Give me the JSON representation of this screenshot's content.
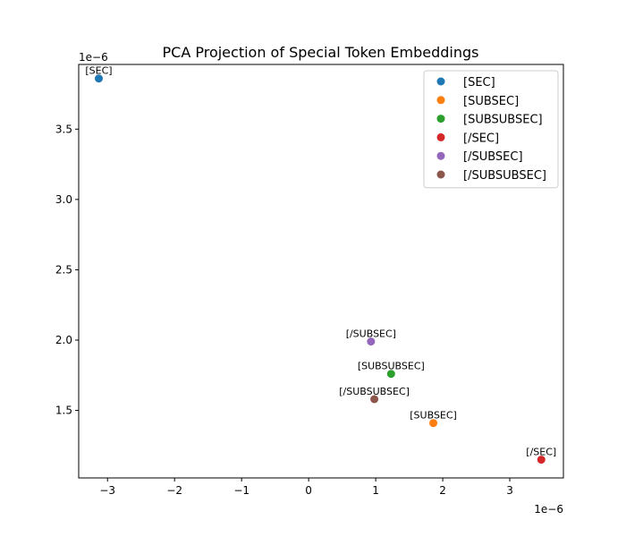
{
  "chart_data": {
    "type": "scatter",
    "title": "PCA Projection of Special Token Embeddings",
    "xlabel": "",
    "ylabel": "",
    "x_offset_label": "1e−6",
    "y_offset_label": "1e−6",
    "xlim": [
      -3.43,
      3.8
    ],
    "ylim": [
      1.02,
      3.96
    ],
    "x_ticks": [
      {
        "value": -3,
        "label": "−3"
      },
      {
        "value": -2,
        "label": "−2"
      },
      {
        "value": -1,
        "label": "−1"
      },
      {
        "value": 0,
        "label": "0"
      },
      {
        "value": 1,
        "label": "1"
      },
      {
        "value": 2,
        "label": "2"
      },
      {
        "value": 3,
        "label": "3"
      }
    ],
    "y_ticks": [
      {
        "value": 1.5,
        "label": "1.5"
      },
      {
        "value": 2.0,
        "label": "2.0"
      },
      {
        "value": 2.5,
        "label": "2.5"
      },
      {
        "value": 3.0,
        "label": "3.0"
      },
      {
        "value": 3.5,
        "label": "3.5"
      }
    ],
    "grid": false,
    "legend_position": "top-right",
    "series": [
      {
        "name": "[SEC]",
        "label": "[SEC]",
        "color": "#1f77b4",
        "x": -3.13,
        "y": 3.86
      },
      {
        "name": "[SUBSEC]",
        "label": "[SUBSEC]",
        "color": "#ff7f0e",
        "x": 1.86,
        "y": 1.41
      },
      {
        "name": "[SUBSUBSEC]",
        "label": "[SUBSUBSEC]",
        "color": "#2ca02c",
        "x": 1.23,
        "y": 1.76
      },
      {
        "name": "[/SEC]",
        "label": "[/SEC]",
        "color": "#d62728",
        "x": 3.47,
        "y": 1.15
      },
      {
        "name": "[/SUBSEC]",
        "label": "[/SUBSEC]",
        "color": "#9467bd",
        "x": 0.93,
        "y": 1.99
      },
      {
        "name": "[/SUBSUBSEC]",
        "label": "[/SUBSUBSEC]",
        "color": "#8c564b",
        "x": 0.98,
        "y": 1.58
      }
    ]
  }
}
